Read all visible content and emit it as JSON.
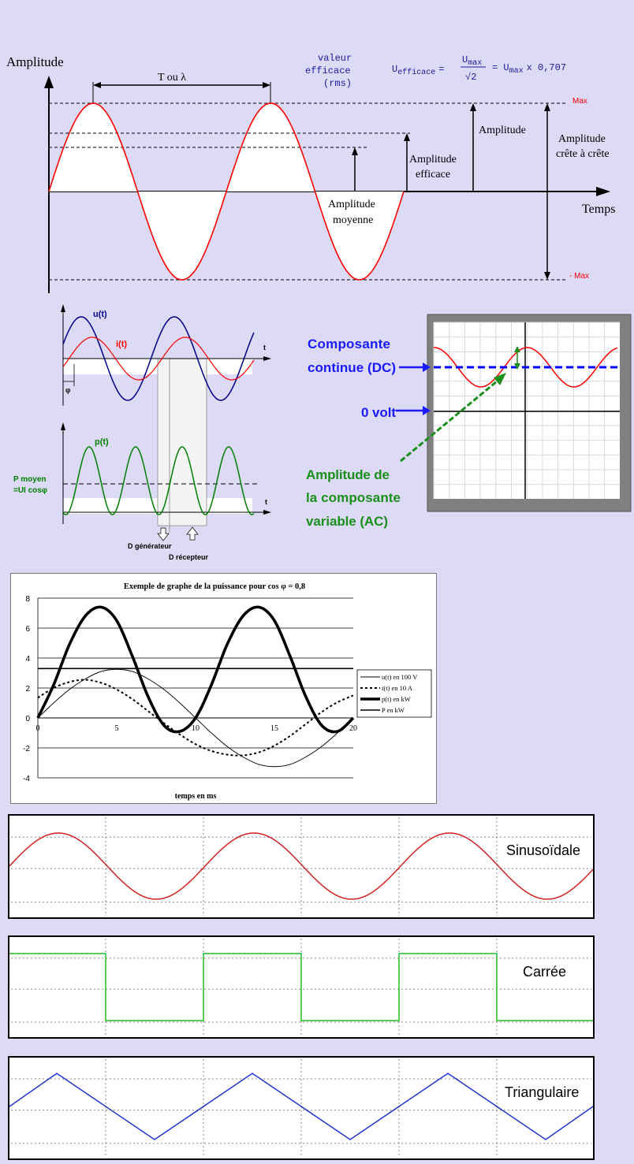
{
  "sine_diagram": {
    "y_axis_label": "Amplitude",
    "x_axis_label": "Temps",
    "period_label": "T ou λ",
    "rms_label": [
      "valeur",
      "efficace",
      "(rms)"
    ],
    "formula": {
      "lhs": "U",
      "lhs_sub": "efficace",
      "eq": "=",
      "num": "U",
      "num_sub": "max",
      "den": "√2",
      "rhs": "= U",
      "rhs_sub": "max",
      "rhs_tail": "x 0,707"
    },
    "max_label": "Max",
    "min_label": "- Max",
    "amplitude_label": "Amplitude",
    "amplitude_efficace_label": [
      "Amplitude",
      "efficace"
    ],
    "amplitude_moyenne_label": [
      "Amplitude",
      "moyenne"
    ],
    "peak_to_peak_label": [
      "Amplitude",
      "crête à crête"
    ],
    "colors": {
      "wave": "#ff0000",
      "max": "#ff0000"
    }
  },
  "power_diagram": {
    "u_label": "u(t)",
    "i_label": "i(t)",
    "t_label_top": "t",
    "phi_label": "φ",
    "p_label": "p(t)",
    "t_label_bottom": "t",
    "p_mean_label": [
      "P moyen",
      "=UI cosφ"
    ],
    "d_generator_label": "D générateur",
    "d_receiver_label": "D récepteur",
    "colors": {
      "u": "#00008b",
      "i": "#ff0000",
      "p": "#008000"
    }
  },
  "oscilloscope": {
    "dc_label": [
      "Composante",
      "continue (DC)"
    ],
    "zero_label": "0 volt",
    "ac_label": [
      "Amplitude de",
      "la composante",
      "variable (AC)"
    ],
    "colors": {
      "blue_text": "#1a1aff",
      "green_text": "#1b8f1b",
      "wave": "#ff0000",
      "dc_line": "#0000ff"
    }
  },
  "chart_data": {
    "type": "line",
    "title": "Exemple de graphe de la puissance pour cos φ = 0,8",
    "xlabel": "temps en ms",
    "ylabel": "",
    "xlim": [
      0,
      20
    ],
    "ylim": [
      -4,
      8
    ],
    "x_ticks": [
      0,
      5,
      10,
      15,
      20
    ],
    "y_ticks": [
      -4,
      -2,
      0,
      2,
      4,
      6,
      8
    ],
    "grid": true,
    "legend_position": "right",
    "series": [
      {
        "name": "u(t) en 100 V",
        "style": "thin",
        "x": [
          0,
          1,
          2,
          3,
          4,
          5,
          6,
          7,
          8,
          9,
          10,
          11,
          12,
          13,
          14,
          15,
          16,
          17,
          18,
          19,
          20
        ],
        "values": [
          0,
          1.0,
          1.9,
          2.6,
          3.1,
          3.25,
          3.1,
          2.6,
          1.9,
          1.0,
          0,
          -1.0,
          -1.9,
          -2.6,
          -3.1,
          -3.25,
          -3.1,
          -2.6,
          -1.9,
          -1.0,
          0
        ]
      },
      {
        "name": "i(t) en 10 A",
        "style": "dashed",
        "x": [
          0,
          1,
          2,
          3,
          4,
          5,
          6,
          7,
          8,
          9,
          10,
          11,
          12,
          13,
          14,
          15,
          16,
          17,
          18,
          19,
          20
        ],
        "values": [
          1.35,
          2.0,
          2.4,
          2.55,
          2.35,
          1.9,
          1.25,
          0.45,
          -0.35,
          -1.1,
          -1.75,
          -2.2,
          -2.45,
          -2.5,
          -2.3,
          -1.85,
          -1.2,
          -0.4,
          0.4,
          1.05,
          1.5
        ]
      },
      {
        "name": "p(t) en kW",
        "style": "thick",
        "x": [
          0,
          1,
          2,
          3,
          4,
          5,
          6,
          7,
          8,
          9,
          10,
          11,
          12,
          13,
          14,
          15,
          16,
          17,
          18,
          19,
          20
        ],
        "values": [
          0,
          2.2,
          4.9,
          6.8,
          7.4,
          6.5,
          4.1,
          1.4,
          -0.5,
          -0.9,
          0,
          2.2,
          4.9,
          6.8,
          7.4,
          6.5,
          4.1,
          1.4,
          -0.5,
          -0.9,
          0
        ]
      },
      {
        "name": "P en kW",
        "style": "medium",
        "x": [
          0,
          20
        ],
        "values": [
          3.3,
          3.3
        ]
      }
    ]
  },
  "waveforms": [
    {
      "label": "Sinusoïdale",
      "color": "#d42020"
    },
    {
      "label": "Carrée",
      "color": "#22bb22"
    },
    {
      "label": "Triangulaire",
      "color": "#2233cc"
    }
  ]
}
